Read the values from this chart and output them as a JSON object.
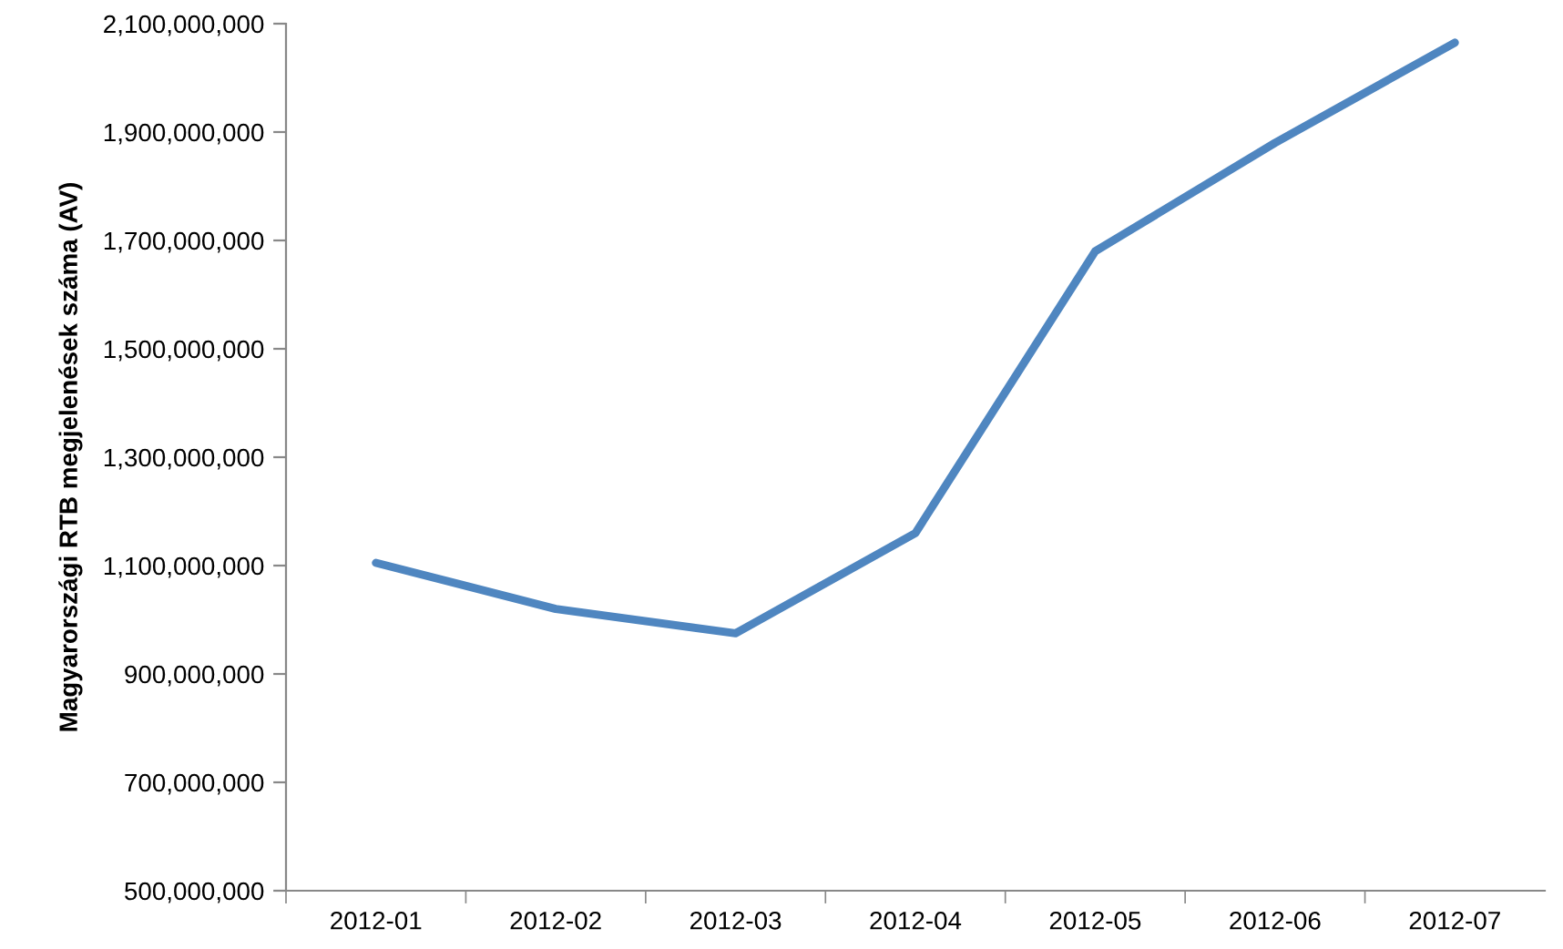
{
  "chart_data": {
    "type": "line",
    "ylabel": "Magyarországi RTB megjelenések száma (AV)",
    "categories": [
      "2012-01",
      "2012-02",
      "2012-03",
      "2012-04",
      "2012-05",
      "2012-06",
      "2012-07"
    ],
    "series": [
      {
        "color": "#4f86c0",
        "values": [
          1105000000,
          1020000000,
          975000000,
          1160000000,
          1680000000,
          1880000000,
          2065000000
        ]
      }
    ],
    "ylim": [
      500000000,
      2100000000
    ],
    "yticks": [
      {
        "value": 500000000,
        "label": "500,000,000"
      },
      {
        "value": 700000000,
        "label": "700,000,000"
      },
      {
        "value": 900000000,
        "label": "900,000,000"
      },
      {
        "value": 1100000000,
        "label": "1,100,000,000"
      },
      {
        "value": 1300000000,
        "label": "1,300,000,000"
      },
      {
        "value": 1500000000,
        "label": "1,500,000,000"
      },
      {
        "value": 1700000000,
        "label": "1,700,000,000"
      },
      {
        "value": 1900000000,
        "label": "1,900,000,000"
      },
      {
        "value": 2100000000,
        "label": "2,100,000,000"
      }
    ],
    "grid": false,
    "marker": "none",
    "line_style": "solid"
  }
}
